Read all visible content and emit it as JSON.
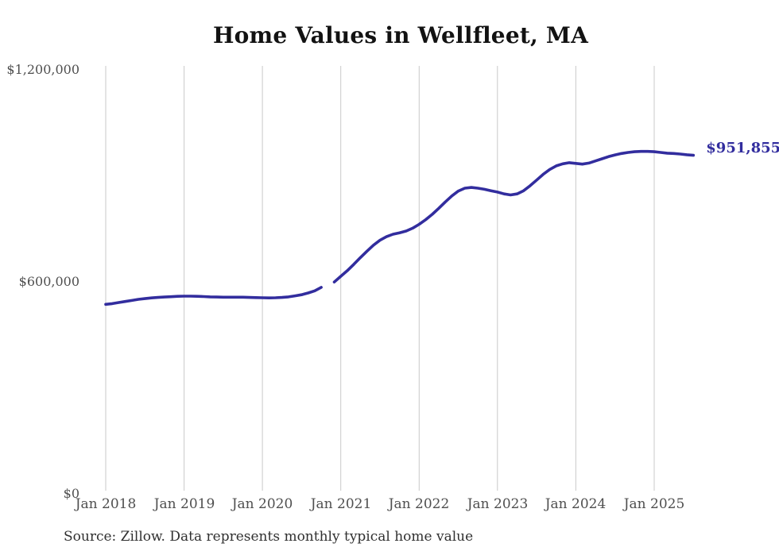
{
  "title": "Home Values in Wellfleet, MA",
  "source_note": "Source: Zillow. Data represents monthly typical home value",
  "colors": {
    "line": "#322d9e",
    "latest_label": "#322d9e",
    "grid": "#c9c9c9",
    "tick_text": "#4f4f4f",
    "title_text": "#121212",
    "background": "#ffffff"
  },
  "chart_data": {
    "type": "line",
    "title": "Home Values in Wellfleet, MA",
    "xlabel": "",
    "ylabel": "",
    "x_tick_labels": [
      "Jan 2018",
      "Jan 2019",
      "Jan 2020",
      "Jan 2021",
      "Jan 2022",
      "Jan 2023",
      "Jan 2024",
      "Jan 2025"
    ],
    "y_tick_labels": [
      "$0",
      "$600,000",
      "$1,200,000"
    ],
    "y_ticks": [
      0,
      600000,
      1200000
    ],
    "ylim": [
      0,
      1200000
    ],
    "grid": "vertical-only",
    "legend": "none",
    "frequency": "monthly",
    "start_month": "Jan 2018",
    "end_month": "Jul 2025",
    "gap_months": [
      "Nov 2020"
    ],
    "latest_value": 951855,
    "latest_value_label": "$951,855",
    "series": [
      {
        "name": "Typical home value",
        "values": [
          531000,
          533000,
          536000,
          539000,
          542000,
          545000,
          547000,
          549000,
          550500,
          551500,
          552500,
          553500,
          554000,
          554000,
          553500,
          553000,
          552000,
          551500,
          551000,
          551000,
          551000,
          551000,
          550500,
          550000,
          549500,
          549000,
          549500,
          550500,
          552000,
          555000,
          558000,
          563000,
          569000,
          579000,
          null,
          594000,
          610000,
          626000,
          644000,
          663000,
          681000,
          698000,
          712000,
          722000,
          729000,
          733000,
          738000,
          746000,
          757000,
          770000,
          785000,
          802000,
          820000,
          837000,
          851000,
          859000,
          861000,
          859000,
          856000,
          852000,
          848000,
          843000,
          840000,
          843000,
          852000,
          866000,
          882000,
          898000,
          912000,
          922000,
          928000,
          931000,
          929000,
          927000,
          930000,
          936000,
          942000,
          948000,
          953000,
          957000,
          960000,
          962000,
          963000,
          963000,
          962000,
          960000,
          958000,
          957000,
          955500,
          953500,
          951855
        ]
      }
    ]
  }
}
